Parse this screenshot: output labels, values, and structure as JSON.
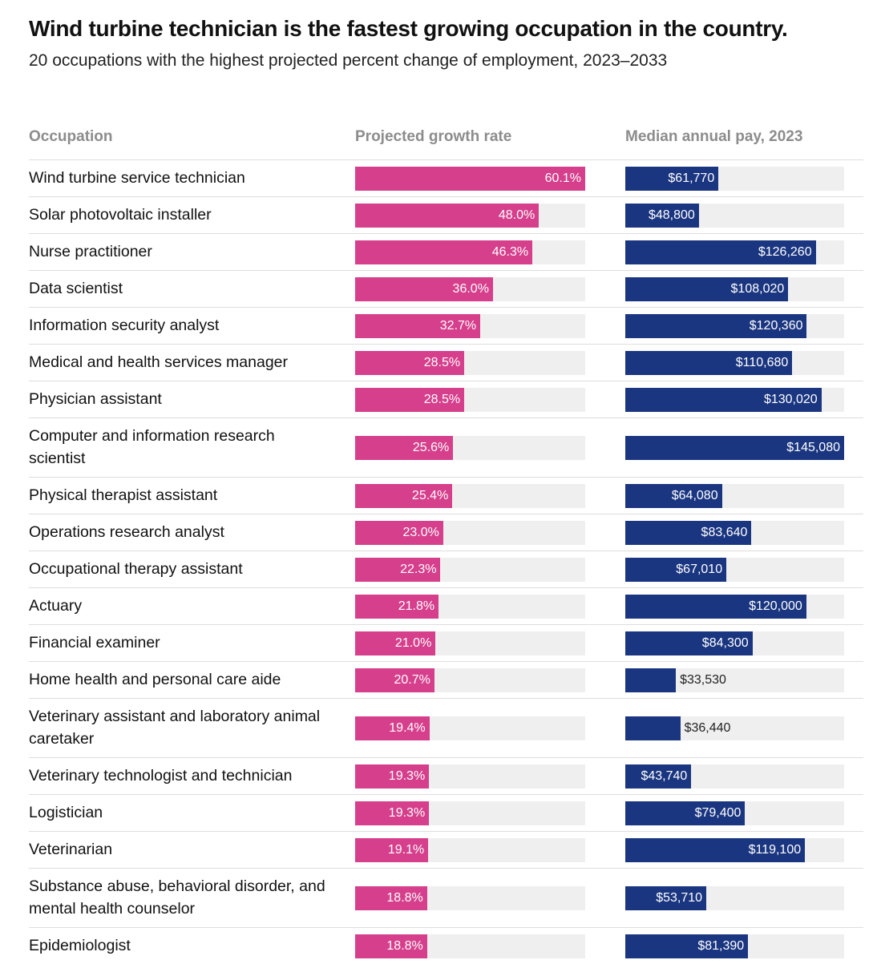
{
  "title": "Wind turbine technician is the fastest growing occupation in the country.",
  "subtitle": "20 occupations with the highest projected percent change of employment, 2023–2033",
  "colors": {
    "growth": "#d63f8c",
    "pay": "#1b3680",
    "track": "#efefef"
  },
  "chart_data": {
    "type": "bar",
    "columns": [
      "Occupation",
      "Projected growth rate",
      "Median annual pay, 2023"
    ],
    "rows": [
      {
        "occupation": "Wind turbine service technician",
        "growth": 60.1,
        "growth_label": "60.1%",
        "pay": 61770,
        "pay_label": "$61,770"
      },
      {
        "occupation": "Solar photovoltaic installer",
        "growth": 48.0,
        "growth_label": "48.0%",
        "pay": 48800,
        "pay_label": "$48,800"
      },
      {
        "occupation": "Nurse practitioner",
        "growth": 46.3,
        "growth_label": "46.3%",
        "pay": 126260,
        "pay_label": "$126,260"
      },
      {
        "occupation": "Data scientist",
        "growth": 36.0,
        "growth_label": "36.0%",
        "pay": 108020,
        "pay_label": "$108,020"
      },
      {
        "occupation": "Information security analyst",
        "growth": 32.7,
        "growth_label": "32.7%",
        "pay": 120360,
        "pay_label": "$120,360"
      },
      {
        "occupation": "Medical and health services manager",
        "growth": 28.5,
        "growth_label": "28.5%",
        "pay": 110680,
        "pay_label": "$110,680"
      },
      {
        "occupation": "Physician assistant",
        "growth": 28.5,
        "growth_label": "28.5%",
        "pay": 130020,
        "pay_label": "$130,020"
      },
      {
        "occupation": "Computer and information research scientist",
        "growth": 25.6,
        "growth_label": "25.6%",
        "pay": 145080,
        "pay_label": "$145,080"
      },
      {
        "occupation": "Physical therapist assistant",
        "growth": 25.4,
        "growth_label": "25.4%",
        "pay": 64080,
        "pay_label": "$64,080"
      },
      {
        "occupation": "Operations research analyst",
        "growth": 23.0,
        "growth_label": "23.0%",
        "pay": 83640,
        "pay_label": "$83,640"
      },
      {
        "occupation": "Occupational therapy assistant",
        "growth": 22.3,
        "growth_label": "22.3%",
        "pay": 67010,
        "pay_label": "$67,010"
      },
      {
        "occupation": "Actuary",
        "growth": 21.8,
        "growth_label": "21.8%",
        "pay": 120000,
        "pay_label": "$120,000"
      },
      {
        "occupation": "Financial examiner",
        "growth": 21.0,
        "growth_label": "21.0%",
        "pay": 84300,
        "pay_label": "$84,300"
      },
      {
        "occupation": "Home health and personal care aide",
        "growth": 20.7,
        "growth_label": "20.7%",
        "pay": 33530,
        "pay_label": "$33,530"
      },
      {
        "occupation": "Veterinary assistant and laboratory animal caretaker",
        "growth": 19.4,
        "growth_label": "19.4%",
        "pay": 36440,
        "pay_label": "$36,440"
      },
      {
        "occupation": "Veterinary technologist and technician",
        "growth": 19.3,
        "growth_label": "19.3%",
        "pay": 43740,
        "pay_label": "$43,740"
      },
      {
        "occupation": "Logistician",
        "growth": 19.3,
        "growth_label": "19.3%",
        "pay": 79400,
        "pay_label": "$79,400"
      },
      {
        "occupation": "Veterinarian",
        "growth": 19.1,
        "growth_label": "19.1%",
        "pay": 119100,
        "pay_label": "$119,100"
      },
      {
        "occupation": "Substance abuse, behavioral disorder, and mental health counselor",
        "growth": 18.8,
        "growth_label": "18.8%",
        "pay": 53710,
        "pay_label": "$53,710"
      },
      {
        "occupation": "Epidemiologist",
        "growth": 18.8,
        "growth_label": "18.8%",
        "pay": 81390,
        "pay_label": "$81,390"
      }
    ],
    "growth_max": 60.1,
    "pay_max": 145080
  }
}
